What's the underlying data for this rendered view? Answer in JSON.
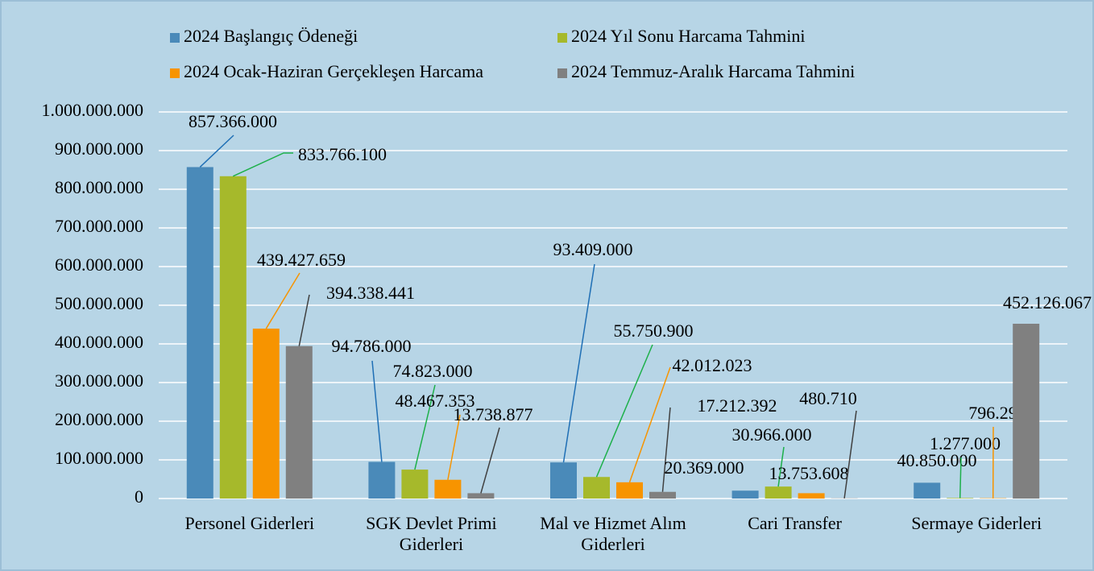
{
  "chart_data": {
    "type": "bar",
    "categories": [
      "Personel Giderleri",
      "SGK Devlet Primi Giderleri",
      "Mal ve Hizmet Alım Giderleri",
      "Cari Transfer",
      "Sermaye Giderleri"
    ],
    "series": [
      {
        "name": "2024 Başlangıç Ödeneği",
        "color": "#4a8ab9",
        "values": [
          857366000,
          94786000,
          93409000,
          20369000,
          40850000
        ],
        "value_labels": [
          "857.366.000",
          "94.786.000",
          "93.409.000",
          "20.369.000",
          "40.850.000"
        ]
      },
      {
        "name": "2024 Yıl Sonu Harcama Tahmini",
        "color": "#a6b92b",
        "values": [
          833766100,
          74823000,
          55750900,
          30966000,
          1277000
        ],
        "value_labels": [
          "833.766.100",
          "74.823.000",
          "55.750.900",
          "30.966.000",
          "1.277.000"
        ]
      },
      {
        "name": "2024 Ocak-Haziran Gerçekleşen Harcama",
        "color": "#f79400",
        "values": [
          439427659,
          48467353,
          42012023,
          13753608,
          796290
        ],
        "value_labels": [
          "439.427.659",
          "48.467.353",
          "42.012.023",
          "13.753.608",
          "796.290"
        ]
      },
      {
        "name": "2024 Temmuz-Aralık Harcama Tahmini",
        "color": "#808080",
        "values": [
          394338441,
          13738877,
          17212392,
          480710,
          452126067
        ],
        "value_labels": [
          "394.338.441",
          "13.738.877",
          "17.212.392",
          "480.710",
          "452.126.067"
        ]
      }
    ],
    "ylim": [
      0,
      1000000000
    ],
    "yticks": [
      0,
      {
        "value": 100000000,
        "label": "100.000.000"
      },
      {
        "value": 200000000,
        "label": "200.000.000"
      },
      {
        "value": 300000000,
        "label": "300.000.000"
      },
      {
        "value": 400000000,
        "label": "400.000.000"
      },
      {
        "value": 500000000,
        "label": "500.000.000"
      },
      {
        "value": 600000000,
        "label": "600.000.000"
      },
      {
        "value": 700000000,
        "label": "700.000.000"
      },
      {
        "value": 800000000,
        "label": "800.000.000"
      },
      {
        "value": 900000000,
        "label": "900.000.000"
      },
      {
        "value": 1000000000,
        "label": "1.000.000.000"
      }
    ],
    "grid": true,
    "legend": "top"
  }
}
